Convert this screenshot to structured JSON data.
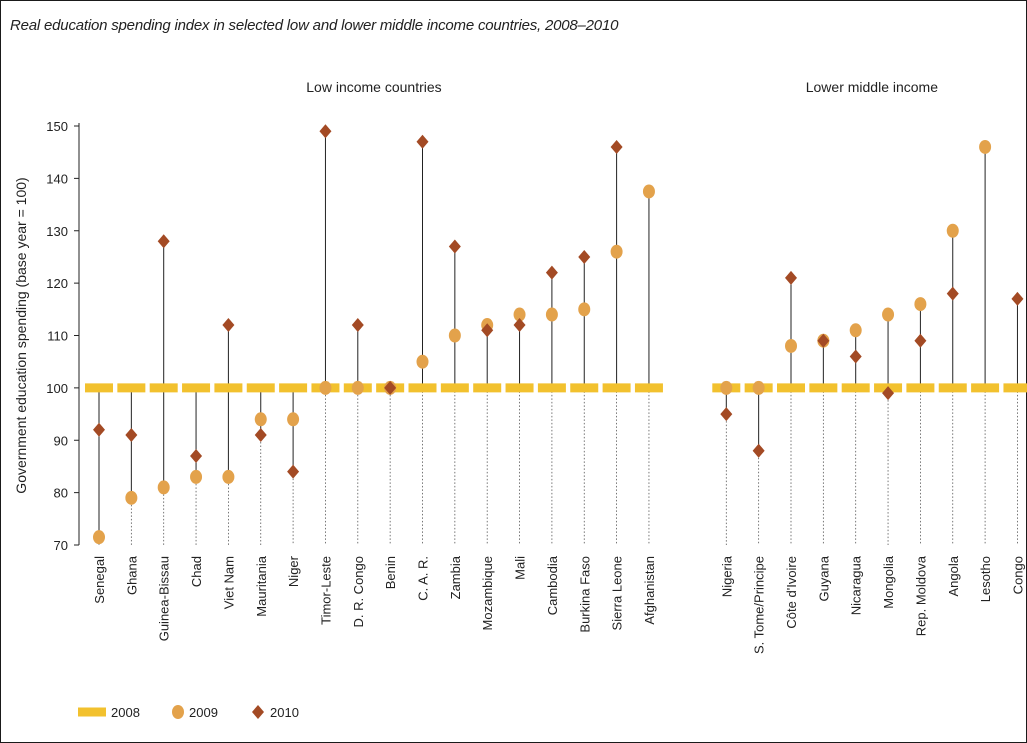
{
  "title": "Real education spending index in selected low and lower middle income countries, 2008–2010",
  "colors": {
    "y2008": "#f2c12e",
    "y2009": "#e3a24b",
    "y2010": "#a34a24",
    "stem": "#222222",
    "guide": "#555555"
  },
  "chart_data": {
    "type": "scatter",
    "title": "Real education spending index in selected low and lower middle income countries, 2008–2010",
    "ylabel": "Government education spending (base year = 100)",
    "ylim": [
      70,
      150
    ],
    "yticks": [
      "70",
      "80",
      "90",
      "100",
      "110",
      "120",
      "130",
      "140",
      "150"
    ],
    "groups": [
      {
        "label": "Low income countries",
        "countries": [
          "Senegal",
          "Ghana",
          "Guinea-Bissau",
          "Chad",
          "Viet Nam",
          "Mauritania",
          "Niger",
          "Timor-Leste",
          "D. R. Congo",
          "Benin",
          "C. A. R.",
          "Zambia",
          "Mozambique",
          "Mali",
          "Cambodia",
          "Burkina Faso",
          "Sierra Leone",
          "Afghanistan"
        ]
      },
      {
        "label": "Lower middle income",
        "countries": [
          "Nigeria",
          "S. Tome/Principe",
          "Côte d'Ivoire",
          "Guyana",
          "Nicaragua",
          "Mongolia",
          "Rep. Moldova",
          "Angola",
          "Lesotho",
          "Congo"
        ]
      }
    ],
    "series": [
      {
        "name": "2008",
        "marker": "bar",
        "values": [
          100,
          100,
          100,
          100,
          100,
          100,
          100,
          100,
          100,
          100,
          100,
          100,
          100,
          100,
          100,
          100,
          100,
          100,
          100,
          100,
          100,
          100,
          100,
          100,
          100,
          100,
          100,
          100
        ]
      },
      {
        "name": "2009",
        "marker": "circle",
        "values": [
          71.5,
          79,
          81,
          83,
          83,
          94,
          94,
          100,
          100,
          100,
          105,
          110,
          112,
          114,
          114,
          115,
          126,
          137.5,
          100,
          100,
          108,
          109,
          111,
          114,
          116,
          130,
          146,
          null
        ]
      },
      {
        "name": "2010",
        "marker": "diamond",
        "values": [
          92,
          91,
          128,
          87,
          112,
          91,
          84,
          149,
          112,
          100,
          147,
          127,
          111,
          112,
          122,
          125,
          146,
          null,
          95,
          88,
          121,
          109,
          106,
          99,
          109,
          118,
          null,
          117
        ]
      }
    ],
    "legend": {
      "placement": "bottom-left",
      "entries": [
        "2008",
        "2009",
        "2010"
      ]
    }
  }
}
